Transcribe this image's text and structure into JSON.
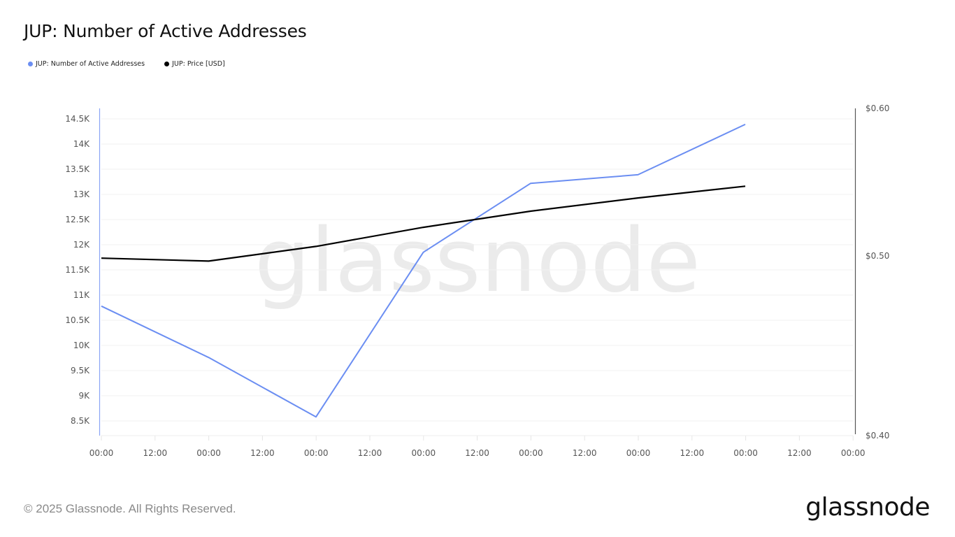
{
  "header": {
    "title": "JUP: Number of Active Addresses"
  },
  "legend": [
    {
      "label": "JUP: Number of Active Addresses",
      "color": "#6b8ef2"
    },
    {
      "label": "JUP: Price [USD]",
      "color": "#000000"
    }
  ],
  "footer": {
    "copyright": "© 2025 Glassnode. All Rights Reserved.",
    "logo": "glassnode"
  },
  "watermark": "glassnode",
  "chart_data": {
    "type": "line",
    "title": "JUP: Number of Active Addresses",
    "xlabel": "",
    "ylabel": "",
    "x_tick_labels": [
      "00:00",
      "12:00",
      "00:00",
      "12:00",
      "00:00",
      "12:00",
      "00:00",
      "12:00",
      "00:00",
      "12:00",
      "00:00",
      "12:00",
      "00:00",
      "12:00",
      "00:00"
    ],
    "x": [
      0,
      1,
      2,
      3,
      4,
      5,
      6
    ],
    "series": [
      {
        "name": "JUP: Number of Active Addresses",
        "axis": "left",
        "color": "#6b8ef2",
        "values": [
          10780,
          9760,
          8580,
          11850,
          13220,
          13390,
          14390
        ]
      },
      {
        "name": "JUP: Price [USD]",
        "axis": "right",
        "color": "#000000",
        "values": [
          0.498,
          0.496,
          0.506,
          0.519,
          0.53,
          0.539,
          0.547
        ]
      }
    ],
    "left_axis": {
      "ticks": [
        "8.5K",
        "9K",
        "9.5K",
        "10K",
        "10.5K",
        "11K",
        "11.5K",
        "12K",
        "12.5K",
        "13K",
        "13.5K",
        "14K",
        "14.5K"
      ],
      "tick_values": [
        8500,
        9000,
        9500,
        10000,
        10500,
        11000,
        11500,
        12000,
        12500,
        13000,
        13500,
        14000,
        14500
      ]
    },
    "right_axis": {
      "ticks": [
        "$0.40",
        "$0.50",
        "$0.60"
      ],
      "tick_values": [
        0.4,
        0.5,
        0.6
      ]
    },
    "grid": true,
    "legend_position": "top-left"
  }
}
